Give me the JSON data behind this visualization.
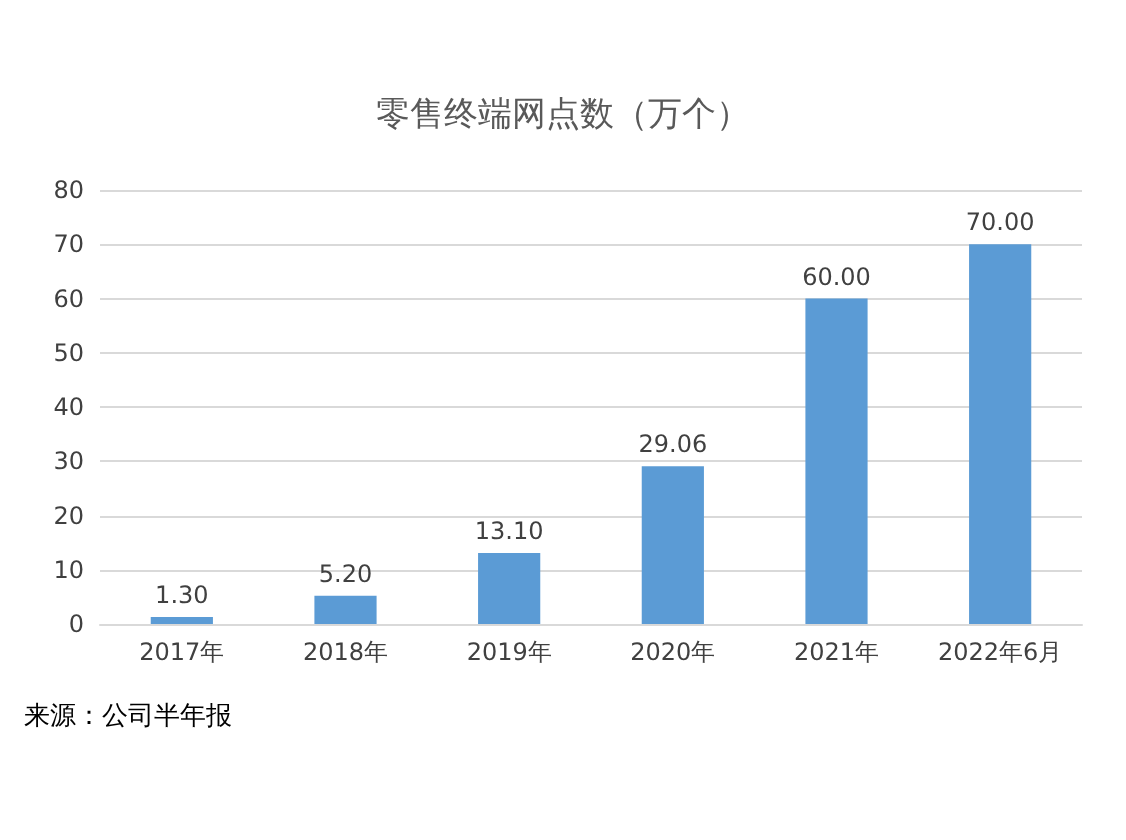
{
  "chart_data": {
    "type": "bar",
    "title": "零售终端网点数（万个）",
    "categories": [
      "2017年",
      "2018年",
      "2019年",
      "2020年",
      "2021年",
      "2022年6月"
    ],
    "values": [
      1.3,
      5.2,
      13.1,
      29.06,
      60,
      70
    ],
    "value_labels": [
      "1.30",
      "5.20",
      "13.10",
      "29.06",
      "60.00",
      "70.00"
    ],
    "color": "#5b9bd5",
    "ylim": [
      0,
      80
    ],
    "yticks": [
      0,
      10,
      20,
      30,
      40,
      50,
      60,
      70,
      80
    ],
    "grid": "y",
    "annotations": [
      "来源：公司半年报"
    ]
  }
}
